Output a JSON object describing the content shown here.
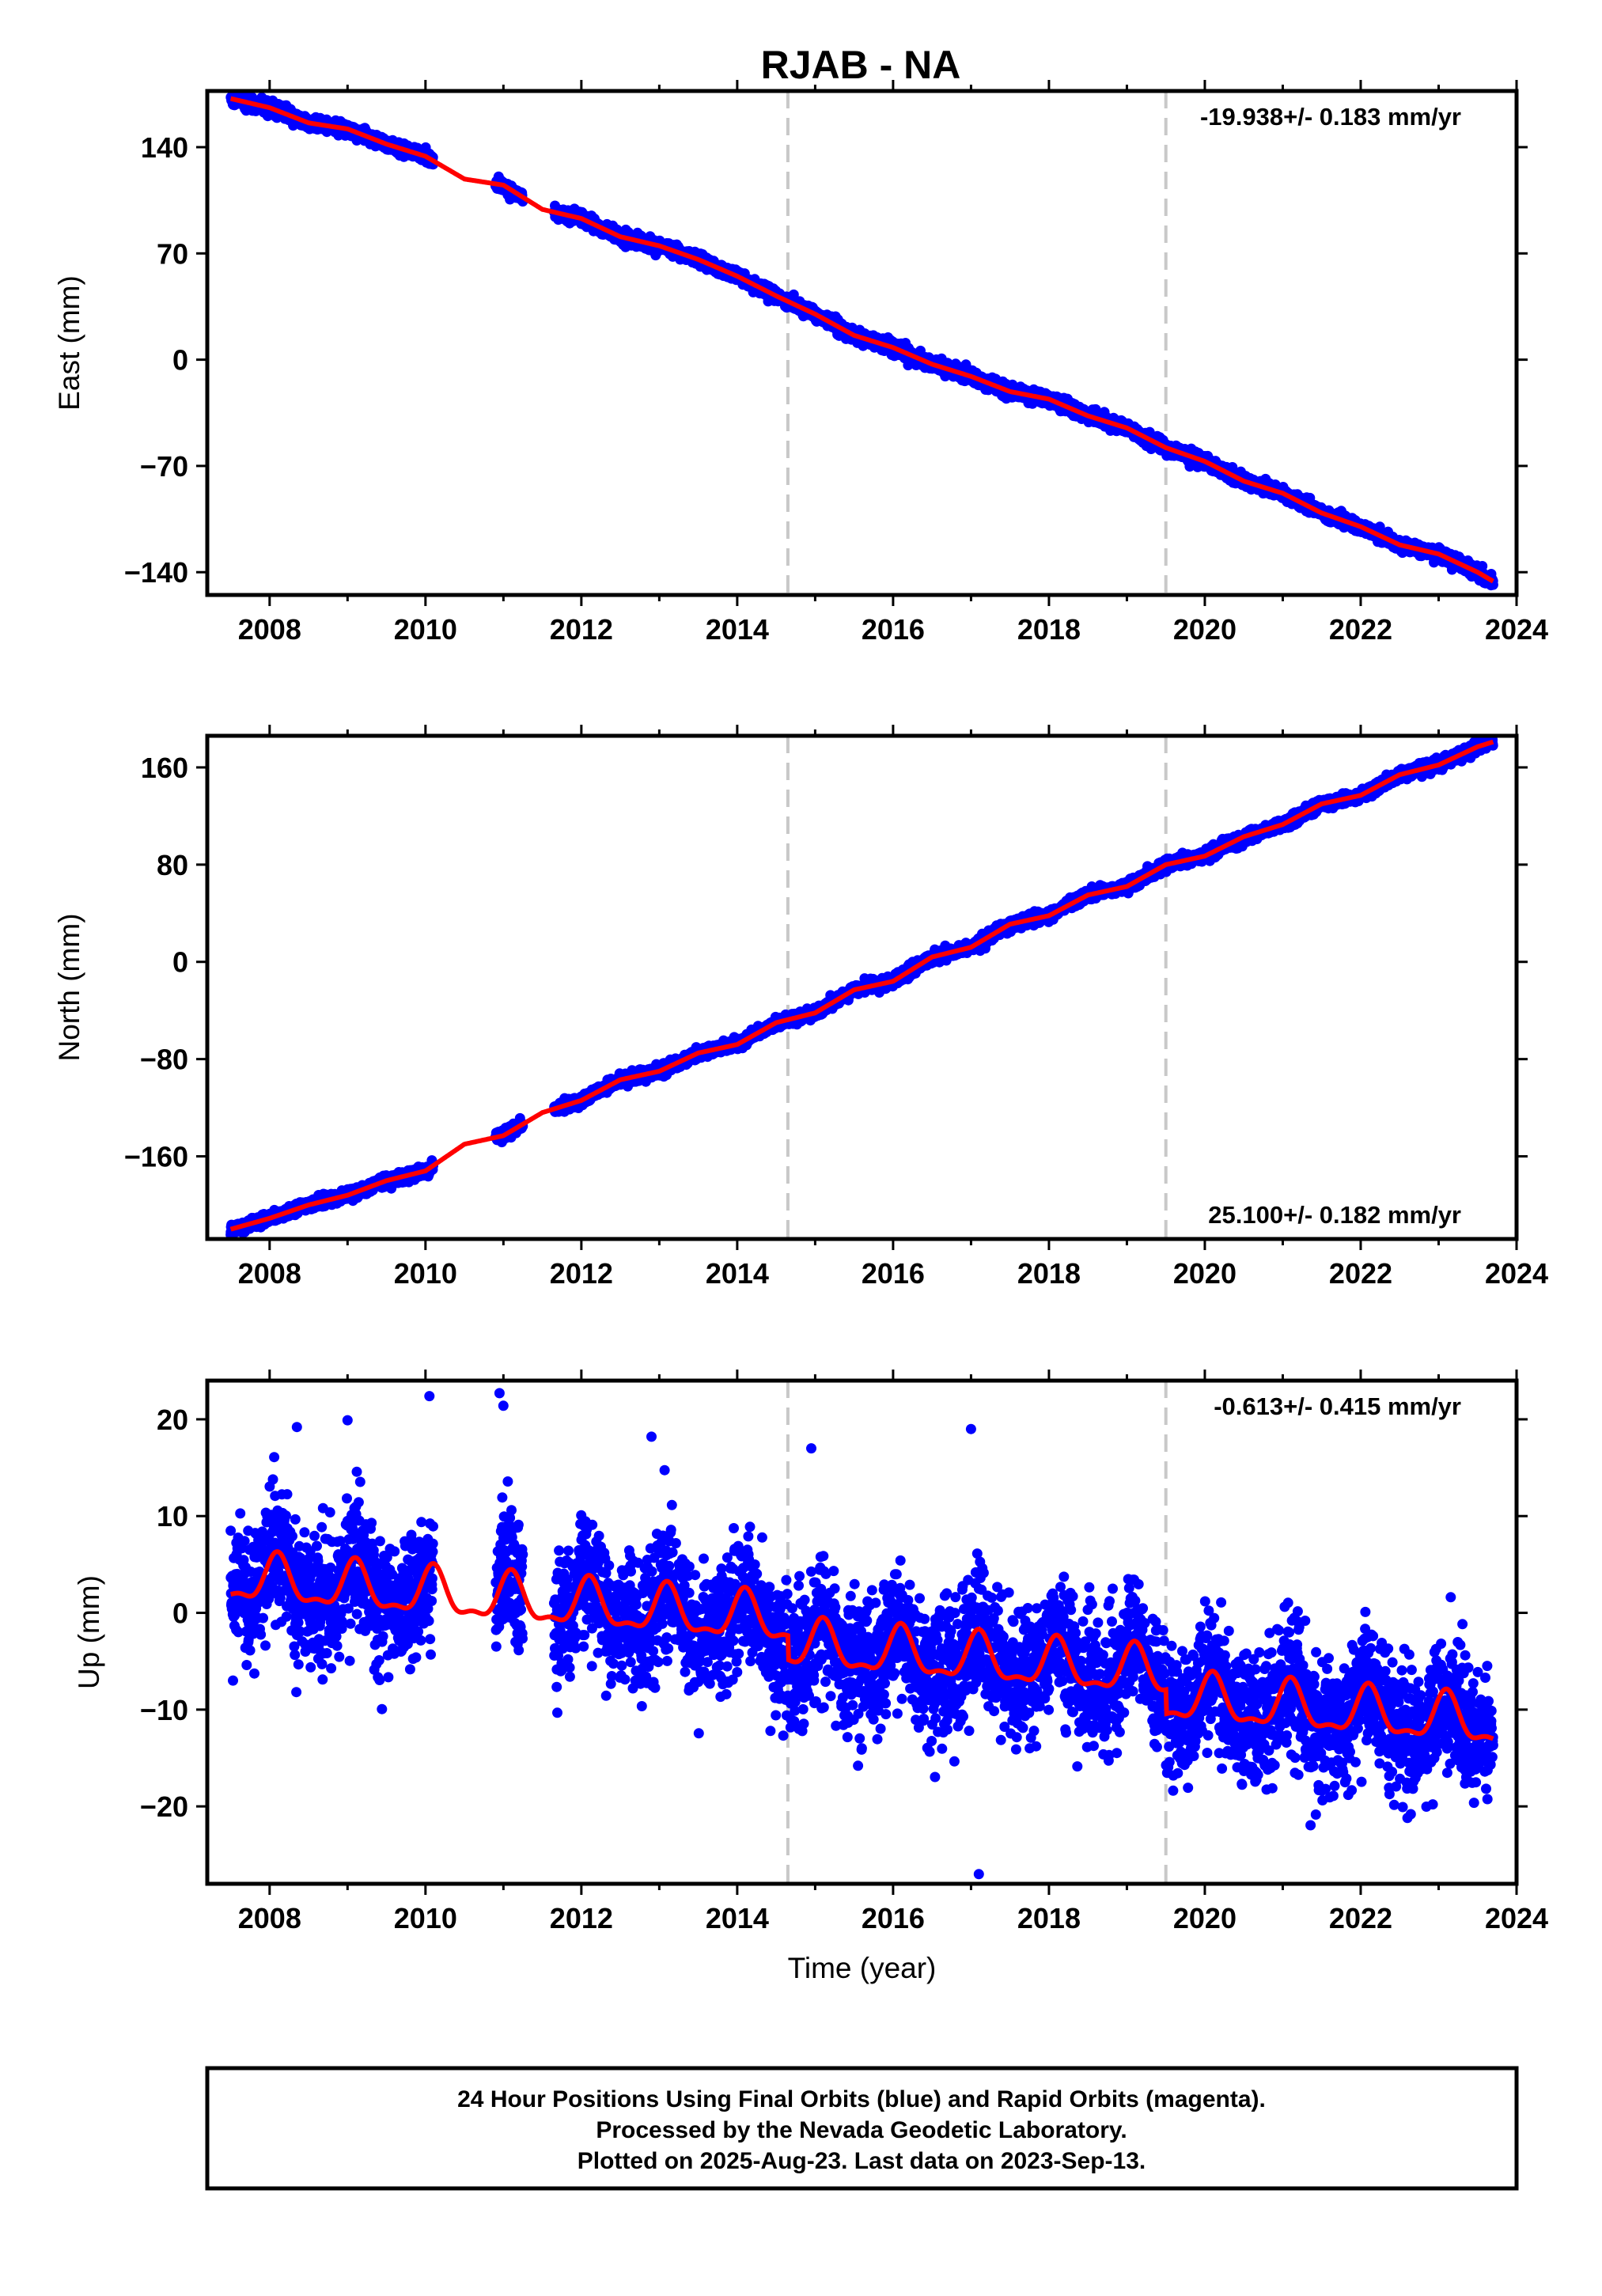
{
  "title": "RJAB - NA",
  "colors": {
    "points": "#0000ff",
    "model": "#ff0000",
    "equipment_change": "#c8c8c8",
    "frame": "#000000"
  },
  "footer": [
    "24 Hour Positions Using Final Orbits (blue) and Rapid Orbits (magenta).",
    "Processed by the Nevada Geodetic Laboratory.",
    "Plotted on 2025-Aug-23. Last data on 2023-Sep-13."
  ],
  "chart_data": [
    {
      "type": "scatter",
      "panel": "east",
      "title": "",
      "xlabel": "",
      "ylabel": "East (mm)",
      "xlim": [
        2007.2,
        2024.0
      ],
      "ylim": [
        -155,
        177
      ],
      "xticks": [
        2008,
        2010,
        2012,
        2014,
        2016,
        2018,
        2020,
        2022,
        2024
      ],
      "yticks": [
        -140,
        -70,
        0,
        70,
        140
      ],
      "rate_text": "-19.938+/- 0.183 mm/yr",
      "rate_position": "top-right",
      "vertical_lines": [
        2014.65,
        2019.5
      ],
      "data_start": 2007.5,
      "data_end": 2023.7,
      "gaps": [
        [
          2010.1,
          2010.9
        ],
        [
          2011.25,
          2011.65
        ]
      ],
      "model_x": [
        2007.5,
        2008.0,
        2008.5,
        2009.0,
        2009.5,
        2010.0,
        2010.5,
        2011.0,
        2011.5,
        2012.0,
        2012.5,
        2013.0,
        2013.5,
        2014.0,
        2014.5,
        2015.0,
        2015.5,
        2016.0,
        2016.5,
        2017.0,
        2017.5,
        2018.0,
        2018.5,
        2019.0,
        2019.5,
        2020.0,
        2020.5,
        2021.0,
        2021.5,
        2022.0,
        2022.5,
        2023.0,
        2023.5,
        2023.7
      ],
      "model_y": [
        172,
        166,
        156,
        152,
        142,
        134,
        119,
        115,
        99,
        93,
        81,
        75,
        66,
        55,
        42,
        30,
        16,
        8,
        -3,
        -11,
        -21,
        -26,
        -37,
        -45,
        -58,
        -67,
        -80,
        -88,
        -101,
        -110,
        -122,
        -128,
        -140,
        -146
      ],
      "scatter_sigma": 2.0
    },
    {
      "type": "scatter",
      "panel": "north",
      "title": "",
      "xlabel": "",
      "ylabel": "North (mm)",
      "xlim": [
        2007.2,
        2024.0
      ],
      "ylim": [
        -228,
        186
      ],
      "xticks": [
        2008,
        2010,
        2012,
        2014,
        2016,
        2018,
        2020,
        2022,
        2024
      ],
      "yticks": [
        -160,
        -80,
        0,
        80,
        160
      ],
      "rate_text": "25.100+/- 0.182 mm/yr",
      "rate_position": "bottom-right",
      "vertical_lines": [
        2014.65,
        2019.5
      ],
      "data_start": 2007.5,
      "data_end": 2023.7,
      "gaps": [
        [
          2010.1,
          2010.9
        ],
        [
          2011.25,
          2011.65
        ]
      ],
      "model_x": [
        2007.5,
        2008.0,
        2008.5,
        2009.0,
        2009.5,
        2010.0,
        2010.5,
        2011.0,
        2011.5,
        2012.0,
        2012.5,
        2013.0,
        2013.5,
        2014.0,
        2014.5,
        2015.0,
        2015.5,
        2016.0,
        2016.5,
        2017.0,
        2017.5,
        2018.0,
        2018.5,
        2019.0,
        2019.5,
        2020.0,
        2020.5,
        2021.0,
        2021.5,
        2022.0,
        2022.5,
        2023.0,
        2023.5,
        2023.7
      ],
      "model_y": [
        -220,
        -211,
        -200,
        -192,
        -180,
        -172,
        -150,
        -143,
        -124,
        -114,
        -97,
        -90,
        -75,
        -68,
        -50,
        -42,
        -23,
        -16,
        4,
        12,
        31,
        38,
        55,
        62,
        80,
        87,
        103,
        113,
        130,
        137,
        154,
        162,
        177,
        181
      ],
      "scatter_sigma": 2.2
    },
    {
      "type": "scatter",
      "panel": "up",
      "title": "",
      "xlabel": "Time (year)",
      "ylabel": "Up (mm)",
      "xlim": [
        2007.2,
        2024.0
      ],
      "ylim": [
        -28,
        24
      ],
      "xticks": [
        2008,
        2010,
        2012,
        2014,
        2016,
        2018,
        2020,
        2022,
        2024
      ],
      "yticks": [
        -20,
        -10,
        0,
        10,
        20
      ],
      "rate_text": "-0.613+/- 0.415 mm/yr",
      "rate_position": "top-right",
      "vertical_lines": [
        2014.65,
        2019.5
      ],
      "data_start": 2007.5,
      "data_end": 2023.7,
      "gaps": [
        [
          2010.1,
          2010.9
        ],
        [
          2011.25,
          2011.65
        ]
      ],
      "model": {
        "offset": 3.5,
        "trend_per_year": -0.613,
        "annual_amplitude": 2.3,
        "annual_phase_year": 0.1,
        "semiannual_amplitude": 0.9,
        "steps": [
          [
            2014.65,
            -2.5
          ],
          [
            2019.5,
            -2.5
          ]
        ]
      },
      "scatter_sigma": 3.3,
      "outliers": [
        [
          2008.35,
          19.2
        ],
        [
          2009.0,
          19.9
        ],
        [
          2010.05,
          22.4
        ],
        [
          2010.95,
          22.7
        ],
        [
          2011.0,
          21.4
        ],
        [
          2012.9,
          18.2
        ],
        [
          2014.95,
          17.0
        ],
        [
          2017.0,
          19.0
        ],
        [
          2015.55,
          -15.8
        ],
        [
          2017.1,
          -27.0
        ],
        [
          2022.6,
          -21.2
        ],
        [
          2021.55,
          -18.2
        ]
      ]
    }
  ]
}
